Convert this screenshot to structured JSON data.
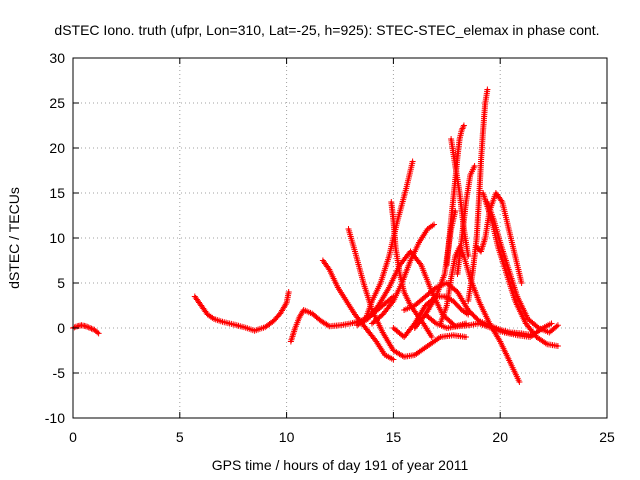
{
  "chart_data": {
    "type": "line",
    "title": "dSTEC Iono. truth (ufpr, Lon=310, Lat=-25, h=925): STEC-STEC_elemax in phase cont.",
    "xlabel": "GPS time / hours of day 191 of year 2011",
    "ylabel": "dSTEC  / TECUs",
    "xlim": [
      0,
      25
    ],
    "ylim": [
      -10,
      30
    ],
    "xticks": [
      0,
      5,
      10,
      15,
      20,
      25
    ],
    "yticks": [
      -10,
      -5,
      0,
      5,
      10,
      15,
      20,
      25,
      30
    ],
    "grid": true,
    "marker": "+",
    "color": "#ff0000",
    "series": [
      {
        "x": [
          0.0,
          0.2,
          0.4,
          0.6,
          0.8,
          1.0,
          1.2
        ],
        "y": [
          0.0,
          0.2,
          0.3,
          0.2,
          0.0,
          -0.2,
          -0.6
        ]
      },
      {
        "x": [
          5.7,
          6.0,
          6.3,
          6.6,
          7.0,
          7.5,
          8.0,
          8.5,
          9.0,
          9.4,
          9.7,
          10.0,
          10.1
        ],
        "y": [
          3.5,
          2.5,
          1.5,
          1.0,
          0.7,
          0.4,
          0.1,
          -0.3,
          0.1,
          0.8,
          1.6,
          2.8,
          4.0
        ]
      },
      {
        "x": [
          10.2,
          10.4,
          10.6,
          10.8,
          11.2,
          11.6,
          12.0,
          12.5,
          13.0,
          13.5,
          14.0,
          14.5,
          15.0
        ],
        "y": [
          -1.5,
          0.0,
          1.2,
          2.0,
          1.6,
          0.8,
          0.2,
          0.3,
          0.5,
          0.8,
          1.5,
          2.5,
          3.5
        ]
      },
      {
        "x": [
          11.7,
          12.0,
          12.4,
          12.8,
          13.2,
          13.7,
          14.2,
          14.6,
          15.0
        ],
        "y": [
          7.5,
          6.5,
          4.5,
          3.0,
          1.5,
          0.0,
          -1.5,
          -3.0,
          -3.5
        ]
      },
      {
        "x": [
          12.9,
          13.2,
          13.6,
          14.0,
          14.5,
          15.0,
          15.5,
          16.0,
          16.6,
          17.2,
          17.8,
          18.4
        ],
        "y": [
          11.0,
          8.5,
          5.0,
          2.0,
          -0.5,
          -2.5,
          -3.2,
          -3.0,
          -2.0,
          -1.0,
          -0.8,
          -1.0
        ]
      },
      {
        "x": [
          13.3,
          13.8,
          14.3,
          14.8,
          15.3,
          15.8,
          16.3,
          16.8,
          17.3,
          17.9,
          18.4
        ],
        "y": [
          0.3,
          1.0,
          2.5,
          4.5,
          7.0,
          8.5,
          7.0,
          4.0,
          1.5,
          0.2,
          0.5
        ]
      },
      {
        "x": [
          13.7,
          14.0,
          14.4,
          14.8,
          15.2,
          15.6,
          15.9
        ],
        "y": [
          1.0,
          3.0,
          5.0,
          8.0,
          12.0,
          15.5,
          18.5
        ]
      },
      {
        "x": [
          14.9,
          15.0,
          15.1,
          15.3,
          15.5,
          15.8,
          16.1,
          16.4,
          16.8
        ],
        "y": [
          14.0,
          12.0,
          9.0,
          6.0,
          4.0,
          2.5,
          1.5,
          0.5,
          -1.0
        ]
      },
      {
        "x": [
          14.0,
          14.5,
          15.0,
          15.4,
          15.8,
          16.2,
          16.6,
          16.9
        ],
        "y": [
          0.5,
          1.5,
          3.0,
          5.0,
          7.5,
          9.5,
          11.0,
          11.5
        ]
      },
      {
        "x": [
          15.0,
          15.5,
          16.0,
          16.5,
          17.0,
          17.4,
          17.8,
          18.2,
          18.5
        ],
        "y": [
          0.0,
          -1.0,
          0.5,
          2.5,
          3.5,
          3.5,
          3.0,
          2.0,
          1.5
        ]
      },
      {
        "x": [
          16.0,
          16.5,
          17.0,
          17.4,
          17.7,
          17.9
        ],
        "y": [
          0.0,
          1.5,
          3.5,
          6.0,
          11.0,
          13.0
        ]
      },
      {
        "x": [
          16.5,
          17.0,
          17.5,
          18.0,
          18.5,
          19.0,
          19.6,
          20.2,
          20.8,
          21.4,
          22.0,
          22.4
        ],
        "y": [
          1.5,
          0.5,
          0.0,
          0.2,
          0.3,
          0.5,
          0.0,
          -0.5,
          -0.8,
          -1.0,
          0.0,
          0.5
        ]
      },
      {
        "x": [
          17.2,
          17.5,
          17.7,
          17.9,
          18.1,
          18.3,
          18.6,
          19.0,
          19.5,
          20.0,
          20.5,
          20.9
        ],
        "y": [
          0.5,
          2.5,
          5.5,
          8.0,
          9.0,
          8.0,
          5.5,
          3.0,
          0.5,
          -1.5,
          -4.0,
          -6.0
        ]
      },
      {
        "x": [
          17.5,
          17.7,
          17.9,
          18.0,
          18.1,
          18.2,
          18.3
        ],
        "y": [
          7.0,
          12.0,
          16.5,
          19.0,
          21.0,
          22.0,
          22.5
        ]
      },
      {
        "x": [
          17.7,
          17.9,
          18.1,
          18.3,
          18.5
        ],
        "y": [
          21.0,
          18.0,
          15.0,
          11.0,
          8.0
        ]
      },
      {
        "x": [
          18.0,
          18.2,
          18.4,
          18.6,
          18.8
        ],
        "y": [
          6.0,
          10.0,
          14.0,
          17.0,
          18.0
        ]
      },
      {
        "x": [
          18.5,
          18.7,
          18.9,
          19.0,
          19.1,
          19.2,
          19.3,
          19.4
        ],
        "y": [
          3.0,
          6.0,
          10.0,
          14.0,
          18.5,
          22.0,
          25.0,
          26.5
        ]
      },
      {
        "x": [
          18.9,
          19.1,
          19.3,
          19.5,
          19.8,
          20.1,
          20.4,
          20.7,
          21.0
        ],
        "y": [
          9.0,
          8.5,
          10.0,
          13.0,
          15.0,
          14.0,
          11.0,
          8.0,
          5.0
        ]
      },
      {
        "x": [
          19.2,
          19.4,
          19.6,
          19.9,
          20.3,
          20.7,
          21.2,
          21.7,
          22.2,
          22.7
        ],
        "y": [
          15.0,
          13.5,
          12.0,
          9.0,
          6.0,
          3.0,
          0.5,
          -1.0,
          -1.8,
          -2.0
        ]
      },
      {
        "x": [
          19.4,
          19.7,
          20.0,
          20.4,
          20.8,
          21.3,
          21.8,
          22.3,
          22.7
        ],
        "y": [
          14.0,
          12.0,
          9.5,
          6.5,
          3.5,
          1.0,
          0.0,
          -0.5,
          0.3
        ]
      },
      {
        "x": [
          15.5,
          16.0,
          16.5,
          17.0,
          17.5,
          18.0,
          18.5,
          19.0,
          19.5,
          20.0,
          20.5,
          21.0,
          21.5
        ],
        "y": [
          2.0,
          2.5,
          3.5,
          4.5,
          5.0,
          4.0,
          2.0,
          0.8,
          0.3,
          -0.2,
          -0.5,
          -0.6,
          -0.8
        ]
      }
    ]
  }
}
